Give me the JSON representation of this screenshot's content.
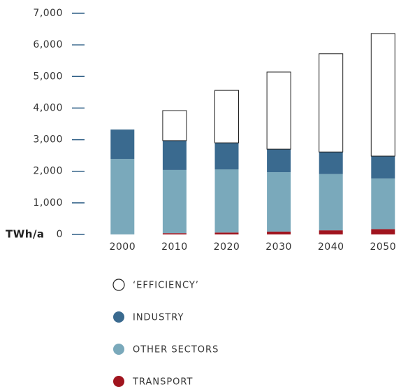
{
  "chart_data": {
    "type": "stacked_bar",
    "y_label": "TWh/a",
    "categories": [
      "2000",
      "2010",
      "2020",
      "2030",
      "2040",
      "2050"
    ],
    "series": [
      {
        "name": "TRANSPORT",
        "color": "#a0141e",
        "values": [
          0,
          40,
          60,
          90,
          130,
          170
        ]
      },
      {
        "name": "OTHER SECTORS",
        "color": "#7aa9bb",
        "values": [
          2390,
          2000,
          2000,
          1880,
          1780,
          1600
        ]
      },
      {
        "name": "INDUSTRY",
        "color": "#3a6a8f",
        "values": [
          930,
          930,
          840,
          730,
          700,
          710
        ]
      },
      {
        "name": "‘EFFICIENCY’",
        "color": "#ffffff",
        "edgecolor": "#222222",
        "values": [
          0,
          950,
          1660,
          2440,
          3110,
          3880
        ]
      }
    ],
    "ylim": [
      0,
      7000
    ],
    "yticks": [
      0,
      {
        "value": 1000,
        "label": "1,000"
      },
      {
        "value": 2000,
        "label": "2,000"
      },
      {
        "value": 3000,
        "label": "3,000"
      },
      {
        "value": 4000,
        "label": "4,000"
      },
      {
        "value": 5000,
        "label": "5,000"
      },
      {
        "value": 6000,
        "label": "6,000"
      },
      {
        "value": 7000,
        "label": "7,000"
      }
    ]
  }
}
